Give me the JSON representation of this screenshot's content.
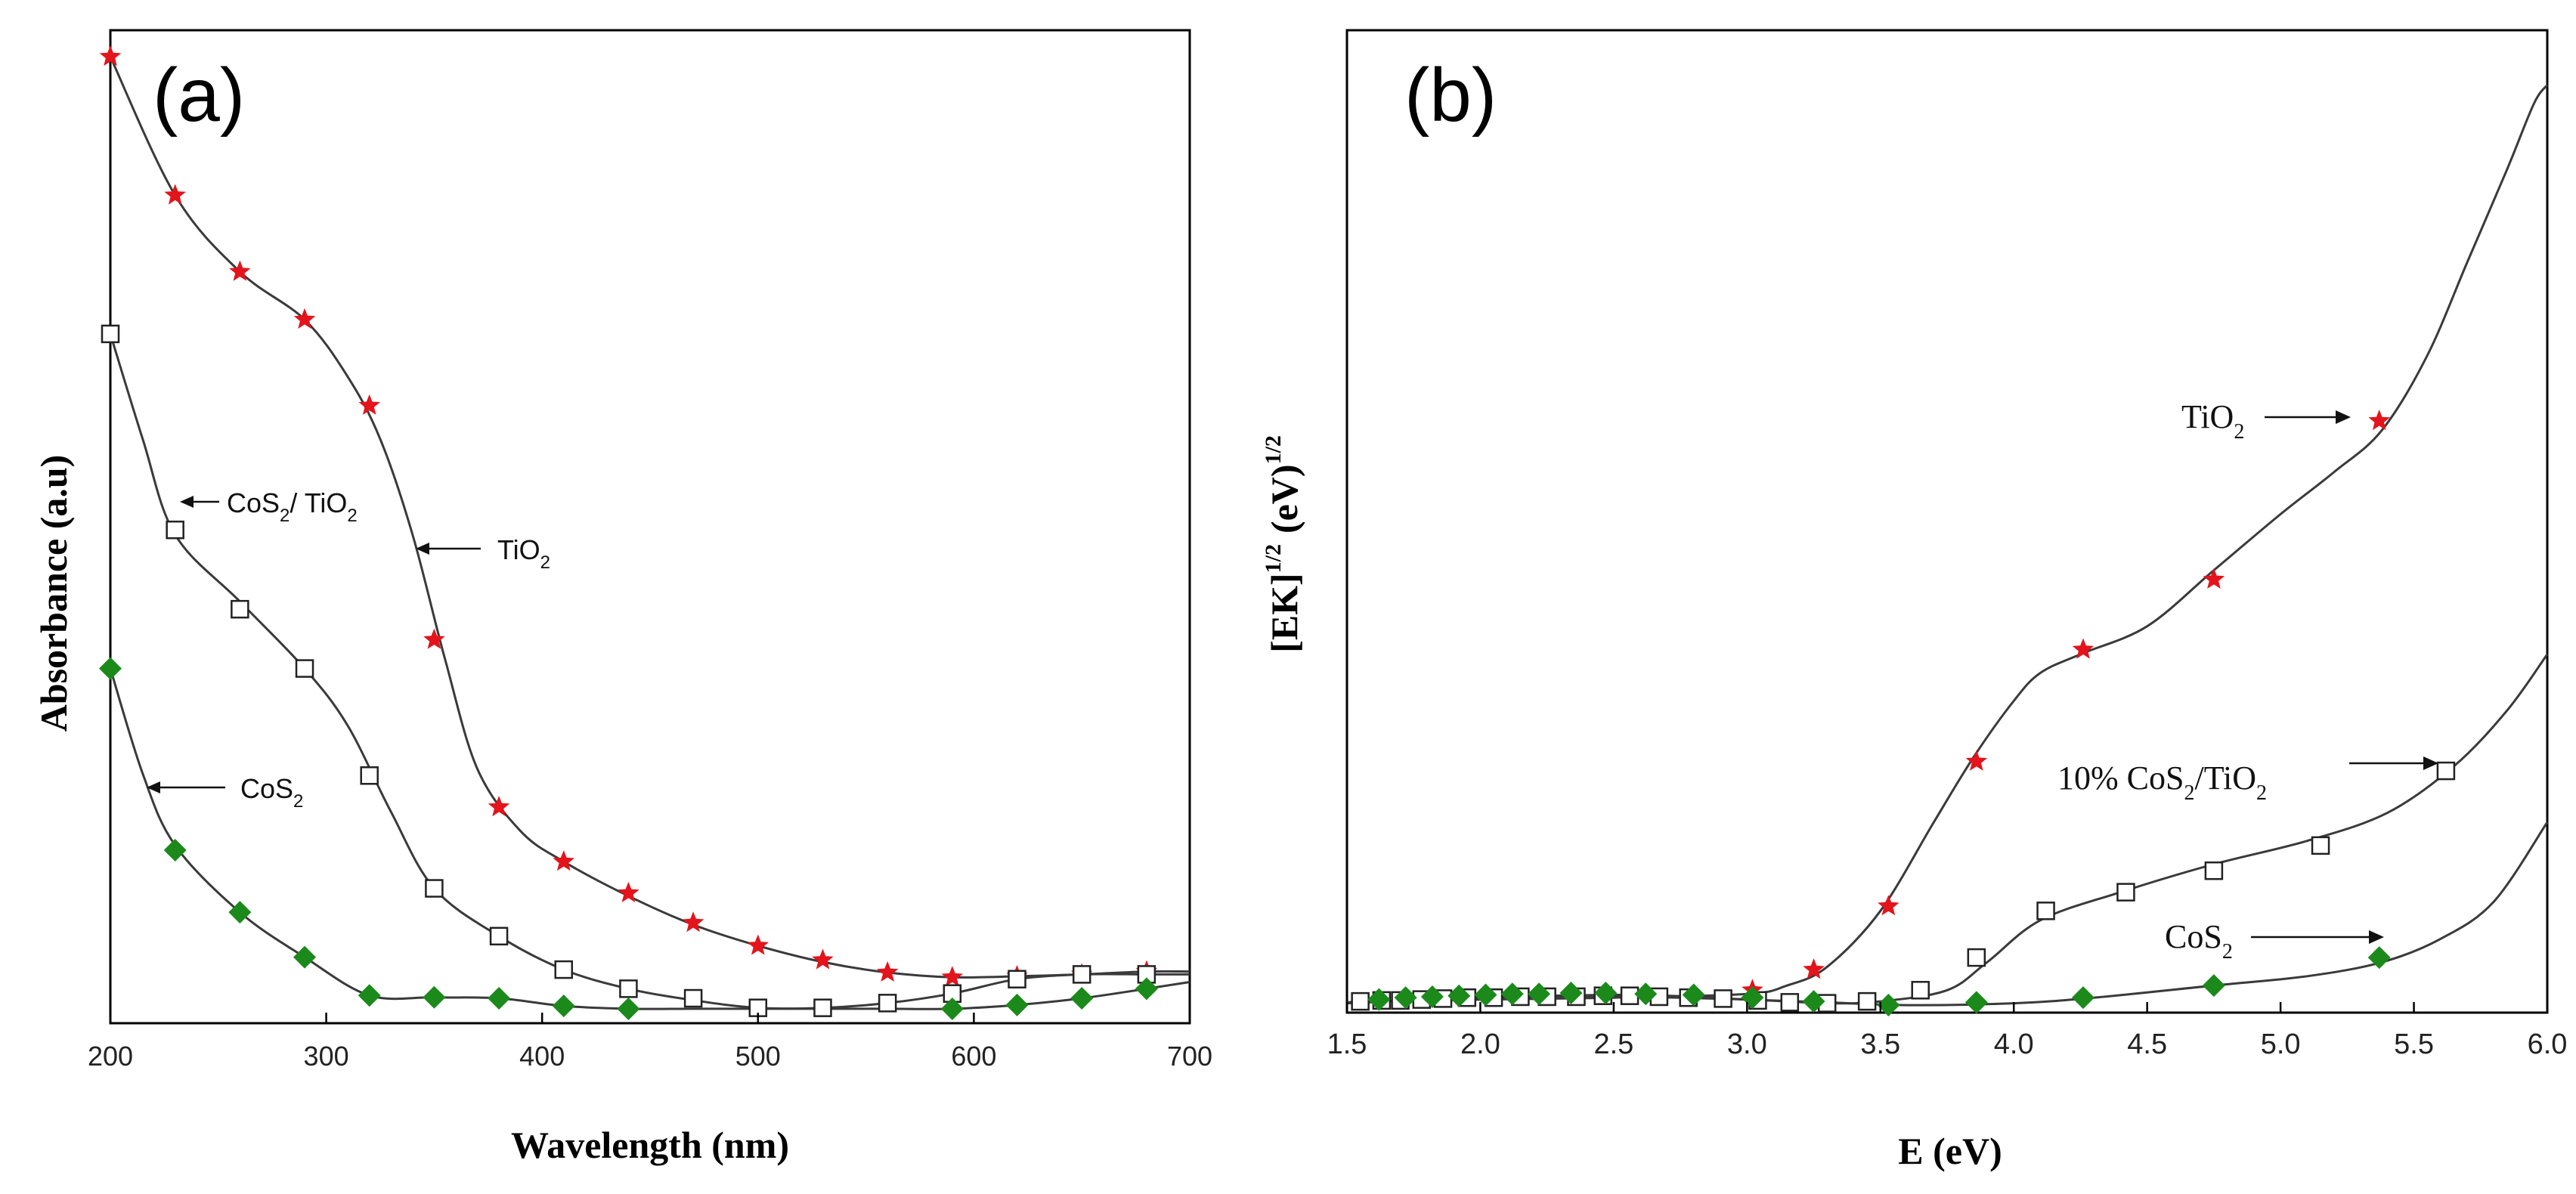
{
  "chart_data": [
    {
      "type": "line",
      "panel_label": "(a)",
      "xlabel": "Wavelength (nm)",
      "ylabel": "Absorbance (a.u)",
      "xlim": [
        200,
        700
      ],
      "ylim": [
        0,
        1
      ],
      "y_tick_labels": "none",
      "x_ticks": [
        "200",
        "300",
        "400",
        "500",
        "600",
        "700"
      ],
      "series": [
        {
          "name": "TiO2",
          "label_main": "TiO",
          "label_sub": "2",
          "marker": "star",
          "color": "#e3141b",
          "line_x": [
            200,
            230,
            260,
            290,
            310,
            325,
            340,
            355,
            370,
            390,
            410,
            440,
            470,
            500,
            530,
            560,
            590,
            620,
            650,
            680,
            700
          ],
          "line_y": [
            1.0,
            0.855,
            0.775,
            0.725,
            0.665,
            0.6,
            0.5,
            0.37,
            0.255,
            0.19,
            0.158,
            0.122,
            0.092,
            0.07,
            0.053,
            0.042,
            0.037,
            0.038,
            0.04,
            0.043,
            0.043
          ],
          "marker_x": [
            200,
            230,
            260,
            290,
            320,
            350,
            380,
            410,
            440,
            470,
            500,
            530,
            560,
            590,
            620,
            650,
            680
          ],
          "marker_y": [
            1.0,
            0.855,
            0.775,
            0.725,
            0.635,
            0.39,
            0.215,
            0.158,
            0.125,
            0.094,
            0.07,
            0.055,
            0.042,
            0.037,
            0.038,
            0.04,
            0.043
          ]
        },
        {
          "name": "CoS2 / TiO2",
          "label_main": "CoS",
          "label_sub": "2",
          "label_rest": "/ TiO",
          "label_sub2": "2",
          "marker": "open-square",
          "color": "#222222",
          "line_x": [
            200,
            215,
            230,
            260,
            290,
            310,
            330,
            350,
            380,
            410,
            440,
            470,
            500,
            530,
            560,
            590,
            620,
            650,
            680,
            700
          ],
          "line_y": [
            0.71,
            0.6,
            0.5,
            0.43,
            0.36,
            0.3,
            0.21,
            0.13,
            0.08,
            0.045,
            0.025,
            0.013,
            0.005,
            0.005,
            0.01,
            0.02,
            0.035,
            0.04,
            0.04,
            0.04
          ],
          "marker_x": [
            200,
            230,
            260,
            290,
            320,
            350,
            380,
            410,
            440,
            470,
            500,
            530,
            560,
            590,
            620,
            650,
            680
          ],
          "marker_y": [
            0.71,
            0.505,
            0.422,
            0.36,
            0.248,
            0.13,
            0.08,
            0.045,
            0.025,
            0.015,
            0.005,
            0.005,
            0.01,
            0.02,
            0.035,
            0.04,
            0.04
          ]
        },
        {
          "name": "CoS2",
          "label_main": "CoS",
          "label_sub": "2",
          "marker": "diamond",
          "color": "#1b8a1b",
          "line_x": [
            200,
            215,
            230,
            260,
            290,
            320,
            350,
            380,
            410,
            440,
            470,
            500,
            530,
            560,
            590,
            620,
            650,
            680,
            700
          ],
          "line_y": [
            0.36,
            0.25,
            0.175,
            0.105,
            0.058,
            0.018,
            0.016,
            0.015,
            0.007,
            0.004,
            0.004,
            0.004,
            0.004,
            0.004,
            0.004,
            0.008,
            0.015,
            0.025,
            0.032
          ],
          "marker_x": [
            200,
            230,
            260,
            290,
            320,
            350,
            380,
            410,
            440,
            590,
            620,
            650,
            680
          ],
          "marker_y": [
            0.36,
            0.17,
            0.105,
            0.058,
            0.018,
            0.016,
            0.015,
            0.007,
            0.004,
            0.004,
            0.008,
            0.015,
            0.025
          ]
        }
      ]
    },
    {
      "type": "line",
      "panel_label": "(b)",
      "xlabel": "E (eV)",
      "ylabel_main": "[EK]",
      "ylabel_sup1": "1/2",
      "ylabel_mid": "(eV)",
      "ylabel_sup2": "1/2",
      "xlim": [
        1.5,
        6.0
      ],
      "ylim": [
        0,
        1
      ],
      "x_ticks": [
        "1.5",
        "2.0",
        "2.5",
        "3.0",
        "3.5",
        "4.0",
        "4.5",
        "5.0",
        "5.5",
        "6.0"
      ],
      "series": [
        {
          "name": "TiO2",
          "label_main": "TiO",
          "label_sub": "2",
          "marker": "star",
          "color": "#e3141b",
          "line_x": [
            1.5,
            2.0,
            2.5,
            3.0,
            3.15,
            3.3,
            3.5,
            3.7,
            3.85,
            4.0,
            4.1,
            4.25,
            4.5,
            4.75,
            5.0,
            5.2,
            5.38,
            5.55,
            5.7,
            5.85,
            5.95,
            6.0
          ],
          "line_y": [
            0.007,
            0.01,
            0.012,
            0.016,
            0.025,
            0.045,
            0.105,
            0.2,
            0.27,
            0.33,
            0.36,
            0.38,
            0.41,
            0.47,
            0.53,
            0.575,
            0.62,
            0.7,
            0.8,
            0.9,
            0.97,
            0.99
          ],
          "marker_x": [
            3.02,
            3.25,
            3.53,
            3.86,
            4.26,
            4.75,
            5.37
          ],
          "marker_y": [
            0.02,
            0.042,
            0.11,
            0.265,
            0.385,
            0.46,
            0.63
          ]
        },
        {
          "name": "10% CoS2/TiO2",
          "label_pre": "10%  CoS",
          "label_sub": "2",
          "label_rest": "/TiO",
          "label_sub2": "2",
          "marker": "open-square",
          "color": "#222222",
          "line_x": [
            1.5,
            2.0,
            2.5,
            3.0,
            3.3,
            3.5,
            3.75,
            3.9,
            4.1,
            4.4,
            4.75,
            5.1,
            5.4,
            5.65,
            5.85,
            6.0
          ],
          "line_y": [
            0.007,
            0.011,
            0.013,
            0.01,
            0.006,
            0.008,
            0.02,
            0.05,
            0.095,
            0.125,
            0.155,
            0.18,
            0.21,
            0.26,
            0.32,
            0.38
          ],
          "marker_x": [
            1.55,
            1.63,
            1.7,
            1.78,
            1.86,
            1.95,
            2.05,
            2.15,
            2.25,
            2.36,
            2.46,
            2.56,
            2.67,
            2.78,
            2.91,
            3.04,
            3.16,
            3.3,
            3.45,
            3.65,
            3.86,
            4.12,
            4.42,
            4.75,
            5.15,
            5.62
          ],
          "marker_y": [
            0.008,
            0.009,
            0.009,
            0.01,
            0.011,
            0.012,
            0.012,
            0.013,
            0.013,
            0.013,
            0.014,
            0.014,
            0.013,
            0.012,
            0.011,
            0.009,
            0.007,
            0.006,
            0.008,
            0.02,
            0.055,
            0.105,
            0.125,
            0.148,
            0.175,
            0.255
          ]
        },
        {
          "name": "CoS2",
          "label_main": "CoS",
          "label_sub": "2",
          "marker": "diamond",
          "color": "#1b8a1b",
          "line_x": [
            1.5,
            2.0,
            2.5,
            2.8,
            3.0,
            3.3,
            3.6,
            4.0,
            4.3,
            4.75,
            5.1,
            5.38,
            5.6,
            5.8,
            6.0
          ],
          "line_y": [
            0.006,
            0.012,
            0.015,
            0.013,
            0.01,
            0.007,
            0.004,
            0.006,
            0.012,
            0.025,
            0.035,
            0.05,
            0.075,
            0.115,
            0.2
          ],
          "marker_x": [
            1.62,
            1.72,
            1.82,
            1.92,
            2.02,
            2.12,
            2.22,
            2.34,
            2.47,
            2.62,
            2.8,
            3.02,
            3.25,
            3.53,
            3.86,
            4.26,
            4.75,
            5.37
          ],
          "marker_y": [
            0.01,
            0.012,
            0.013,
            0.014,
            0.015,
            0.016,
            0.016,
            0.017,
            0.017,
            0.016,
            0.015,
            0.012,
            0.008,
            0.004,
            0.007,
            0.012,
            0.025,
            0.055
          ]
        }
      ]
    }
  ]
}
